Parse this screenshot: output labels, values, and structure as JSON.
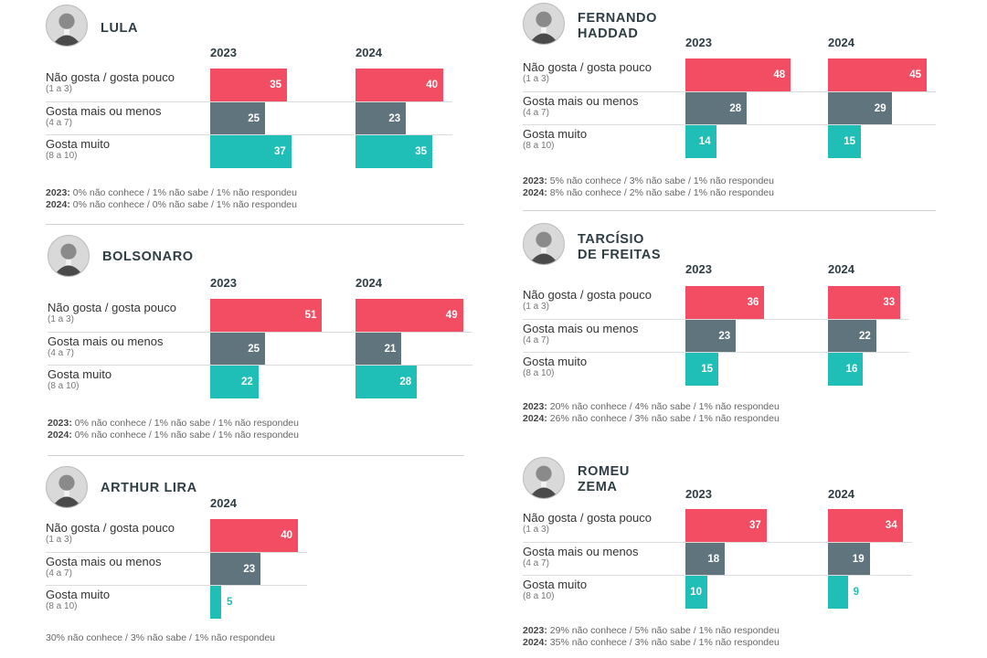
{
  "colors": {
    "dislike": "#f24d63",
    "neutral": "#5f747c",
    "like": "#1fbfb8"
  },
  "chart_data": [
    {
      "type": "bar",
      "title": "LULA",
      "categories": [
        {
          "label": "Não gosta / gosta pouco",
          "scale": "(1 a 3)"
        },
        {
          "label": "Gosta mais ou menos",
          "scale": "(4 a 7)"
        },
        {
          "label": "Gosta muito",
          "scale": "(8 a 10)"
        }
      ],
      "series": [
        {
          "name": "2023",
          "values": [
            35,
            25,
            37
          ]
        },
        {
          "name": "2024",
          "values": [
            40,
            23,
            35
          ]
        }
      ],
      "footnotes": [
        {
          "year": "2023:",
          "text": " 0% não conhece / 1% não sabe / 1% não respondeu"
        },
        {
          "year": "2024:",
          "text": " 0% não conhece / 0% não sabe / 1% não respondeu"
        }
      ]
    },
    {
      "type": "bar",
      "title": "BOLSONARO",
      "categories": [
        {
          "label": "Não gosta / gosta pouco",
          "scale": "(1 a 3)"
        },
        {
          "label": "Gosta mais ou menos",
          "scale": "(4 a 7)"
        },
        {
          "label": "Gosta muito",
          "scale": "(8 a 10)"
        }
      ],
      "series": [
        {
          "name": "2023",
          "values": [
            51,
            25,
            22
          ]
        },
        {
          "name": "2024",
          "values": [
            49,
            21,
            28
          ]
        }
      ],
      "footnotes": [
        {
          "year": "2023:",
          "text": " 0% não conhece / 1% não sabe / 1% não respondeu"
        },
        {
          "year": "2024:",
          "text": " 0% não conhece / 1% não sabe / 1% não respondeu"
        }
      ]
    },
    {
      "type": "bar",
      "title": "ARTHUR LIRA",
      "categories": [
        {
          "label": "Não gosta / gosta pouco",
          "scale": "(1 a 3)"
        },
        {
          "label": "Gosta mais ou menos",
          "scale": "(4 a 7)"
        },
        {
          "label": "Gosta muito",
          "scale": "(8 a 10)"
        }
      ],
      "series": [
        {
          "name": "2024",
          "values": [
            40,
            23,
            5
          ]
        }
      ],
      "footnotes": [
        {
          "year": "",
          "text": "30% não conhece / 3% não sabe / 1% não respondeu"
        }
      ]
    },
    {
      "type": "bar",
      "title": "FERNANDO\nHADDAD",
      "categories": [
        {
          "label": "Não gosta / gosta pouco",
          "scale": "(1 a 3)"
        },
        {
          "label": "Gosta mais ou menos",
          "scale": "(4 a 7)"
        },
        {
          "label": "Gosta muito",
          "scale": "(8 a 10)"
        }
      ],
      "series": [
        {
          "name": "2023",
          "values": [
            48,
            28,
            14
          ]
        },
        {
          "name": "2024",
          "values": [
            45,
            29,
            15
          ]
        }
      ],
      "footnotes": [
        {
          "year": "2023:",
          "text": " 5% não conhece / 3% não sabe / 1% não respondeu"
        },
        {
          "year": "2024:",
          "text": " 8% não conhece / 2% não sabe / 1% não respondeu"
        }
      ]
    },
    {
      "type": "bar",
      "title": "TARCÍSIO\nDE FREITAS",
      "categories": [
        {
          "label": "Não gosta / gosta pouco",
          "scale": "(1 a 3)"
        },
        {
          "label": "Gosta mais ou menos",
          "scale": "(4 a 7)"
        },
        {
          "label": "Gosta muito",
          "scale": "(8 a 10)"
        }
      ],
      "series": [
        {
          "name": "2023",
          "values": [
            36,
            23,
            15
          ]
        },
        {
          "name": "2024",
          "values": [
            33,
            22,
            16
          ]
        }
      ],
      "footnotes": [
        {
          "year": "2023:",
          "text": " 20% não conhece / 4% não sabe / 1% não respondeu"
        },
        {
          "year": "2024:",
          "text": " 26% não conhece / 3% não sabe / 1% não respondeu"
        }
      ]
    },
    {
      "type": "bar",
      "title": "ROMEU\nZEMA",
      "categories": [
        {
          "label": "Não gosta / gosta pouco",
          "scale": "(1 a 3)"
        },
        {
          "label": "Gosta mais ou menos",
          "scale": "(4 a 7)"
        },
        {
          "label": "Gosta muito",
          "scale": "(8 a 10)"
        }
      ],
      "series": [
        {
          "name": "2023",
          "values": [
            37,
            18,
            10
          ]
        },
        {
          "name": "2024",
          "values": [
            34,
            19,
            9
          ]
        }
      ],
      "footnotes": [
        {
          "year": "2023:",
          "text": " 29% não conhece / 5% não sabe / 1% não respondeu"
        },
        {
          "year": "2024:",
          "text": " 35% não conhece / 3% não sabe / 1% não respondeu"
        }
      ]
    }
  ]
}
